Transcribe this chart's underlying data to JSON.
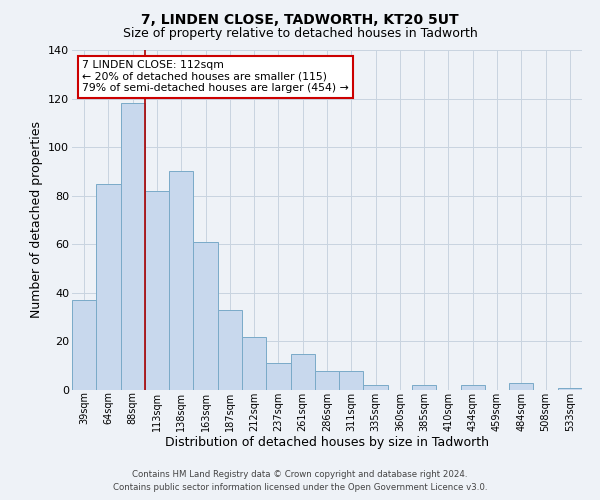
{
  "title": "7, LINDEN CLOSE, TADWORTH, KT20 5UT",
  "subtitle": "Size of property relative to detached houses in Tadworth",
  "xlabel": "Distribution of detached houses by size in Tadworth",
  "ylabel": "Number of detached properties",
  "bar_labels": [
    "39sqm",
    "64sqm",
    "88sqm",
    "113sqm",
    "138sqm",
    "163sqm",
    "187sqm",
    "212sqm",
    "237sqm",
    "261sqm",
    "286sqm",
    "311sqm",
    "335sqm",
    "360sqm",
    "385sqm",
    "410sqm",
    "434sqm",
    "459sqm",
    "484sqm",
    "508sqm",
    "533sqm"
  ],
  "bar_values": [
    37,
    85,
    118,
    82,
    90,
    61,
    33,
    22,
    11,
    15,
    8,
    8,
    2,
    0,
    2,
    0,
    2,
    0,
    3,
    0,
    1
  ],
  "bar_color": "#c8d8ed",
  "bar_edge_color": "#7aaac8",
  "vline_color": "#aa0000",
  "vline_x_index": 2.5,
  "annotation_text": "7 LINDEN CLOSE: 112sqm\n← 20% of detached houses are smaller (115)\n79% of semi-detached houses are larger (454) →",
  "annotation_box_facecolor": "#ffffff",
  "annotation_box_edgecolor": "#cc0000",
  "ylim": [
    0,
    140
  ],
  "yticks": [
    0,
    20,
    40,
    60,
    80,
    100,
    120,
    140
  ],
  "grid_color": "#c8d4e0",
  "background_color": "#eef2f7",
  "title_fontsize": 10,
  "subtitle_fontsize": 9,
  "ylabel_fontsize": 9,
  "xlabel_fontsize": 9,
  "footer_line1": "Contains HM Land Registry data © Crown copyright and database right 2024.",
  "footer_line2": "Contains public sector information licensed under the Open Government Licence v3.0."
}
